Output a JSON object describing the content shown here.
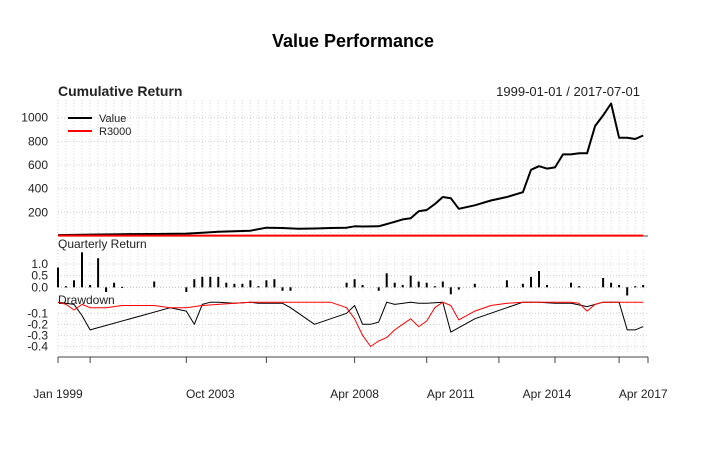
{
  "title": "Value Performance",
  "panels": {
    "cumulative": {
      "label": "Cumulative Return",
      "date_range": "1999-01-01 / 2017-07-01"
    },
    "quarterly": {
      "label": "Quarterly Return"
    },
    "drawdown": {
      "label": "Drawdown"
    }
  },
  "x_ticks": [
    {
      "label": "Jan 1999",
      "t": 1999.0
    },
    {
      "label": "Oct 2003",
      "t": 2003.75
    },
    {
      "label": "Apr 2008",
      "t": 2008.25
    },
    {
      "label": "Apr 2011",
      "t": 2011.25
    },
    {
      "label": "Apr 2014",
      "t": 2014.25
    },
    {
      "label": "Apr 2017",
      "t": 2017.25
    }
  ],
  "chart_data": [
    {
      "type": "line",
      "title": "Cumulative Return",
      "x_unit": "decimal year",
      "x": [
        1999.0,
        2000.0,
        2001.0,
        2002.0,
        2003.0,
        2003.5,
        2004.0,
        2004.5,
        2005.0,
        2005.5,
        2006.0,
        2006.5,
        2007.0,
        2007.5,
        2008.0,
        2008.25,
        2008.5,
        2009.0,
        2009.5,
        2009.75,
        2010.0,
        2010.25,
        2010.5,
        2010.75,
        2011.0,
        2011.25,
        2011.5,
        2012.0,
        2012.5,
        2013.0,
        2013.5,
        2013.75,
        2014.0,
        2014.25,
        2014.5,
        2014.75,
        2015.0,
        2015.25,
        2015.5,
        2015.75,
        2016.0,
        2016.25,
        2016.5,
        2016.75,
        2017.0,
        2017.25
      ],
      "ylim": [
        0,
        1150
      ],
      "yticks": [
        200,
        400,
        600,
        800,
        1000
      ],
      "legend": "top-left",
      "grid": true,
      "series": [
        {
          "name": "Value",
          "color": "#000000",
          "values": [
            8,
            12,
            15,
            17,
            20,
            28,
            36,
            40,
            45,
            70,
            68,
            62,
            63,
            68,
            70,
            82,
            80,
            82,
            120,
            140,
            150,
            210,
            220,
            270,
            330,
            320,
            230,
            260,
            300,
            330,
            370,
            560,
            590,
            570,
            580,
            690,
            690,
            700,
            700,
            930,
            1020,
            1120,
            830,
            830,
            820,
            850
          ]
        },
        {
          "name": "R3000",
          "color": "#ff0000",
          "values": [
            3,
            3,
            3,
            3,
            3,
            3,
            3,
            3,
            3,
            3,
            3,
            3,
            3,
            3,
            3,
            3,
            3,
            3,
            3,
            3,
            3,
            3,
            3,
            3,
            3,
            3,
            3,
            3,
            3,
            3,
            3,
            3,
            3,
            3,
            3,
            3,
            3,
            3,
            3,
            3,
            3,
            3,
            3,
            3,
            3,
            3
          ]
        }
      ]
    },
    {
      "type": "bar",
      "title": "Quarterly Return",
      "x_unit": "decimal year",
      "ylim": [
        -0.2,
        1.6
      ],
      "yticks": [
        0.0,
        0.5,
        1.0
      ],
      "x": [
        1999.0,
        1999.25,
        1999.5,
        1999.75,
        2000.0,
        2000.25,
        2000.5,
        2000.75,
        2001.0,
        2002.0,
        2003.0,
        2003.25,
        2003.5,
        2003.75,
        2004.0,
        2004.25,
        2004.5,
        2004.75,
        2005.0,
        2005.25,
        2005.5,
        2005.75,
        2006.0,
        2006.25,
        2008.0,
        2008.25,
        2008.5,
        2009.0,
        2009.25,
        2009.5,
        2009.75,
        2010.0,
        2010.25,
        2010.5,
        2010.75,
        2011.0,
        2011.25,
        2011.5,
        2012.0,
        2013.0,
        2013.5,
        2013.75,
        2014.0,
        2014.25,
        2015.0,
        2015.25,
        2016.0,
        2016.25,
        2016.5,
        2016.75,
        2017.0,
        2017.25
      ],
      "values": [
        0.85,
        0.05,
        0.3,
        1.5,
        0.1,
        1.25,
        -0.2,
        0.2,
        0.02,
        0.25,
        -0.2,
        0.35,
        0.45,
        0.45,
        0.45,
        0.2,
        0.15,
        0.15,
        0.3,
        0.05,
        0.3,
        0.35,
        -0.15,
        -0.15,
        0.2,
        0.35,
        0.1,
        -0.15,
        0.6,
        0.2,
        0.1,
        0.5,
        0.25,
        0.2,
        0.05,
        0.25,
        -0.3,
        -0.1,
        0.15,
        0.3,
        0.15,
        0.45,
        0.7,
        0.1,
        0.2,
        0.05,
        0.4,
        0.2,
        0.1,
        -0.35,
        0.05,
        0.1
      ]
    },
    {
      "type": "line",
      "title": "Drawdown",
      "x_unit": "decimal year",
      "ylim": [
        -0.45,
        0.02
      ],
      "yticks": [
        -0.1,
        -0.2,
        -0.3,
        -0.4
      ],
      "series": [
        {
          "name": "Value",
          "color": "#000000",
          "x": [
            1999.0,
            1999.5,
            1999.75,
            2000.0,
            2002.5,
            2003.0,
            2003.25,
            2003.5,
            2003.75,
            2004.0,
            2004.5,
            2005.0,
            2005.25,
            2006.0,
            2006.25,
            2007.0,
            2008.0,
            2008.25,
            2008.5,
            2008.75,
            2009.0,
            2009.25,
            2009.5,
            2010.0,
            2010.25,
            2010.5,
            2011.0,
            2011.25,
            2011.5,
            2012.0,
            2013.0,
            2013.5,
            2014.0,
            2014.5,
            2015.0,
            2015.5,
            2016.0,
            2016.25,
            2016.5,
            2016.75,
            2017.0,
            2017.25
          ],
          "values": [
            0,
            -0.02,
            -0.12,
            -0.25,
            -0.05,
            -0.08,
            -0.2,
            -0.02,
            0,
            0,
            -0.01,
            0,
            -0.01,
            -0.01,
            -0.05,
            -0.2,
            -0.1,
            -0.03,
            -0.2,
            -0.2,
            -0.18,
            0,
            -0.02,
            0,
            -0.01,
            -0.01,
            0,
            -0.27,
            -0.23,
            -0.15,
            -0.05,
            0,
            0,
            -0.01,
            -0.01,
            -0.04,
            0,
            0,
            0,
            -0.25,
            -0.25,
            -0.22
          ]
        },
        {
          "name": "R3000",
          "color": "#ff0000",
          "x": [
            1999.0,
            1999.25,
            1999.5,
            1999.75,
            2000.0,
            2000.5,
            2001.0,
            2002.0,
            2002.5,
            2003.0,
            2003.5,
            2004.0,
            2005.0,
            2006.0,
            2007.0,
            2007.5,
            2008.0,
            2008.25,
            2008.5,
            2008.75,
            2009.0,
            2009.25,
            2009.5,
            2009.75,
            2010.0,
            2010.25,
            2010.5,
            2010.75,
            2011.0,
            2011.25,
            2011.5,
            2012.0,
            2012.5,
            2013.0,
            2013.5,
            2014.0,
            2014.5,
            2015.0,
            2015.25,
            2015.5,
            2015.75,
            2016.0,
            2016.5,
            2017.0,
            2017.25
          ],
          "values": [
            0,
            -0.02,
            -0.07,
            -0.02,
            -0.05,
            -0.05,
            -0.03,
            -0.03,
            -0.05,
            -0.05,
            -0.03,
            -0.02,
            0,
            0,
            0,
            0,
            -0.05,
            -0.15,
            -0.3,
            -0.4,
            -0.35,
            -0.32,
            -0.25,
            -0.2,
            -0.15,
            -0.22,
            -0.17,
            -0.05,
            0,
            -0.03,
            -0.16,
            -0.08,
            -0.03,
            -0.01,
            0,
            0,
            0,
            0,
            -0.01,
            -0.08,
            -0.02,
            0,
            0,
            0,
            0
          ]
        }
      ]
    }
  ]
}
